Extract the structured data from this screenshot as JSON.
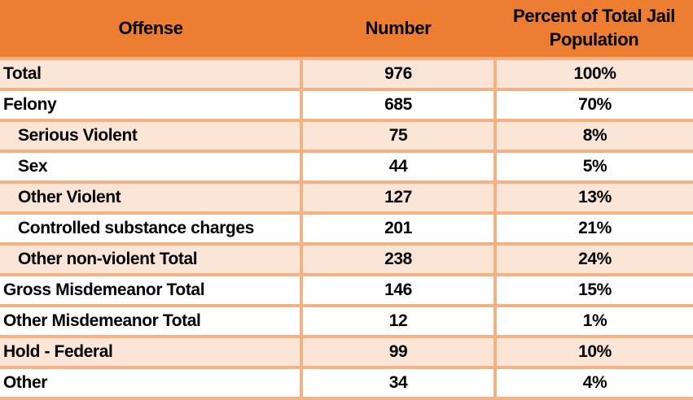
{
  "chart_data": {
    "type": "table",
    "title": "",
    "columns": [
      "Offense",
      "Number",
      "Percent of Total Jail Population"
    ],
    "rows": [
      {
        "offense": "Total",
        "number": "976",
        "percent": "100%",
        "indent": false,
        "shaded": true
      },
      {
        "offense": "Felony",
        "number": "685",
        "percent": "70%",
        "indent": false,
        "shaded": false
      },
      {
        "offense": "Serious Violent",
        "number": "75",
        "percent": "8%",
        "indent": true,
        "shaded": true
      },
      {
        "offense": "Sex",
        "number": "44",
        "percent": "5%",
        "indent": true,
        "shaded": false
      },
      {
        "offense": "Other Violent",
        "number": "127",
        "percent": "13%",
        "indent": true,
        "shaded": true
      },
      {
        "offense": "Controlled substance charges",
        "number": "201",
        "percent": "21%",
        "indent": true,
        "shaded": false
      },
      {
        "offense": "Other non-violent Total",
        "number": "238",
        "percent": "24%",
        "indent": true,
        "shaded": true
      },
      {
        "offense": "Gross Misdemeanor Total",
        "number": "146",
        "percent": "15%",
        "indent": false,
        "shaded": false
      },
      {
        "offense": "Other Misdemeanor Total",
        "number": "12",
        "percent": "1%",
        "indent": false,
        "shaded": false
      },
      {
        "offense": "Hold - Federal",
        "number": "99",
        "percent": "10%",
        "indent": false,
        "shaded": true
      },
      {
        "offense": "Other",
        "number": "34",
        "percent": "4%",
        "indent": false,
        "shaded": false
      }
    ]
  },
  "colors": {
    "header_bg": "#ED7D31",
    "shaded_row_bg": "#FBE5D6",
    "plain_row_bg": "#FFFFFF",
    "border": "#F4B183",
    "text": "#000000"
  }
}
